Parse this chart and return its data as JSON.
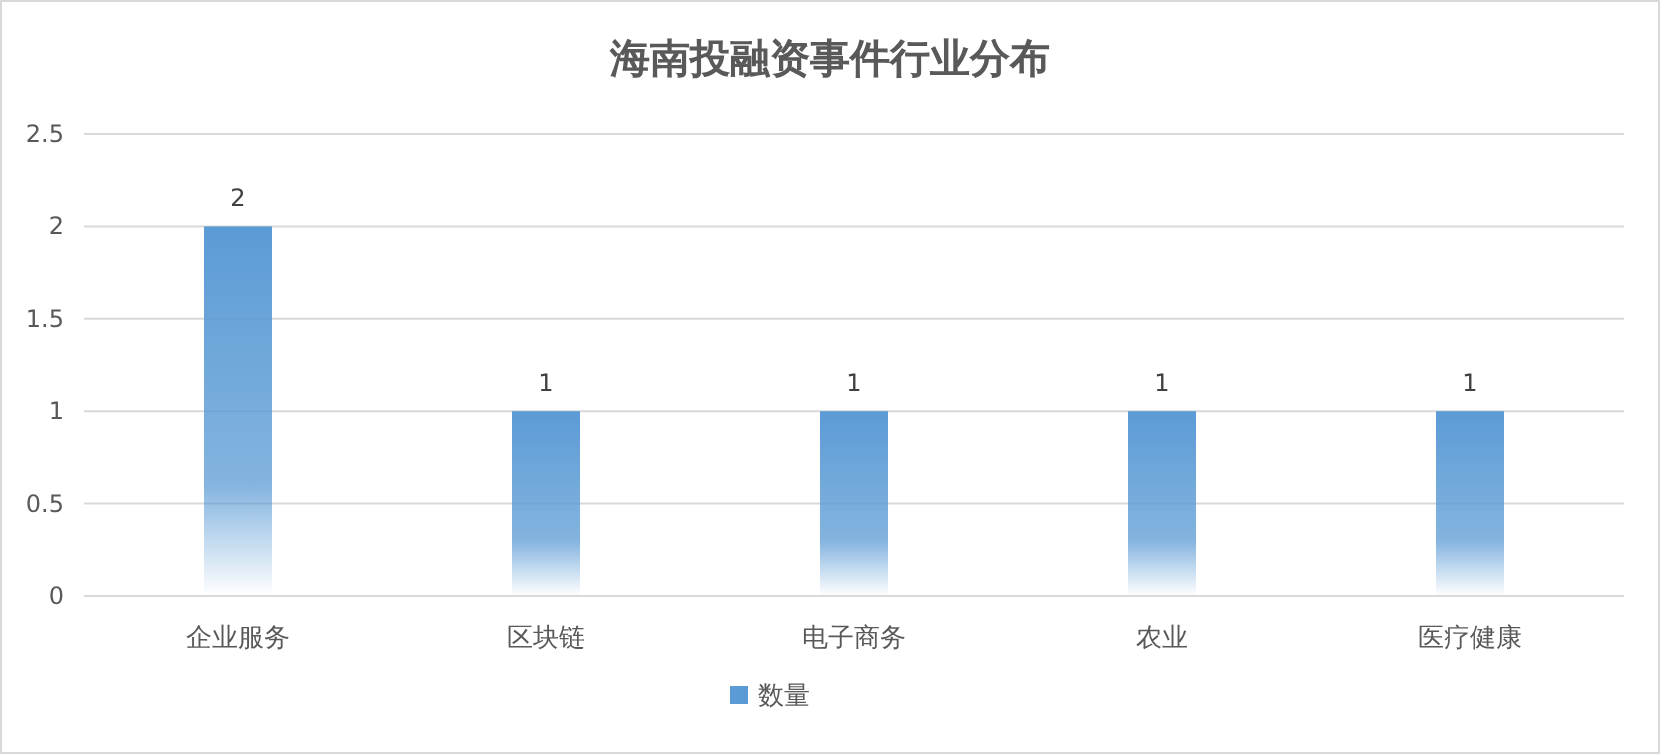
{
  "chart_data": {
    "type": "bar",
    "title": "海南投融资事件行业分布",
    "categories": [
      "企业服务",
      "区块链",
      "电子商务",
      "农业",
      "医疗健康"
    ],
    "series": [
      {
        "name": "数量",
        "color": "#5b9bd5",
        "values": [
          2,
          1,
          1,
          1,
          1
        ]
      }
    ],
    "ylim": [
      0,
      2.5
    ],
    "yticks": [
      0,
      0.5,
      1,
      1.5,
      2,
      2.5
    ],
    "grid": "y",
    "legend": "bottom",
    "data_labels": true
  }
}
